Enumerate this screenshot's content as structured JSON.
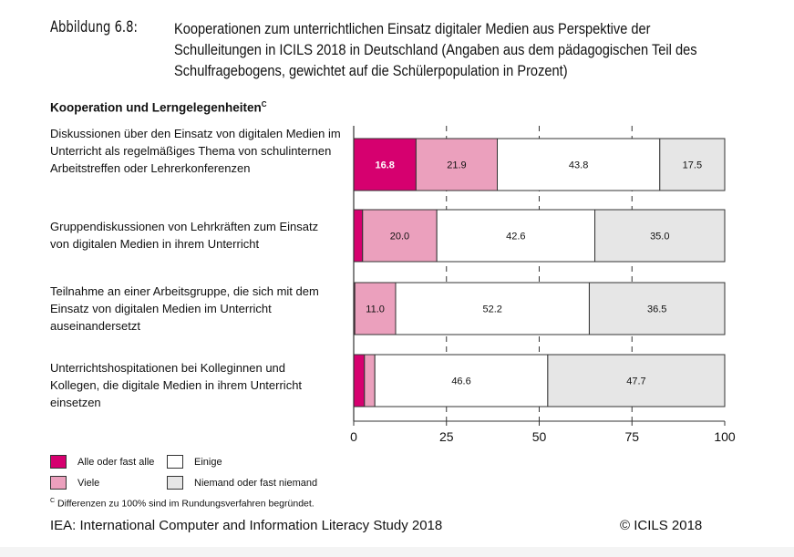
{
  "figure_label": "Abbildung 6.8:",
  "figure_title": "Kooperationen zum unterrichtlichen Einsatz digitaler Medien aus Perspektive der Schulleitungen in ICILS 2018 in Deutschland (Angaben aus dem pädagogischen Teil des Schulfragebogens, gewichtet auf die Schülerpopulation in Prozent)",
  "section_title": "Kooperation und Lerngelegenheiten",
  "section_sup": "C",
  "chart_data": {
    "type": "bar",
    "orientation": "horizontal",
    "stacked": true,
    "categories": [
      "Diskussionen über den Einsatz von digitalen Medien im Unterricht als regelmäßiges Thema von schulinternen Arbeitstreffen oder Lehrerkonferenzen",
      "Gruppendiskussionen von Lehrkräften zum Einsatz von digitalen Medien in ihrem Unterricht",
      "Teilnahme an einer Arbeitsgruppe, die sich mit dem Einsatz von digitalen Medien im Unterricht auseinandersetzt",
      "Unterrichtshospitationen bei Kolleginnen und Kollegen, die digitale Medien in ihrem Unterricht einsetzen"
    ],
    "series": [
      {
        "name": "Alle oder fast alle",
        "color": "#d6006f",
        "values": [
          16.8,
          2.4,
          0.3,
          2.9
        ],
        "labels": [
          "16.8",
          "",
          "",
          ""
        ]
      },
      {
        "name": "Viele",
        "color": "#eba0bd",
        "values": [
          21.9,
          20.0,
          11.0,
          2.8
        ],
        "labels": [
          "21.9",
          "20.0",
          "11.0",
          ""
        ]
      },
      {
        "name": "Einige",
        "color": "#ffffff",
        "values": [
          43.8,
          42.6,
          52.2,
          46.6
        ],
        "labels": [
          "43.8",
          "42.6",
          "52.2",
          "46.6"
        ]
      },
      {
        "name": "Niemand oder fast niemand",
        "color": "#e6e6e6",
        "values": [
          17.5,
          35.0,
          36.5,
          47.7
        ],
        "labels": [
          "17.5",
          "35.0",
          "36.5",
          "47.7"
        ]
      }
    ],
    "xlim": [
      0,
      100
    ],
    "xticks": [
      "0",
      "25",
      "50",
      "75",
      "100"
    ],
    "grid": "dashed vertical at 25, 50, 75",
    "legend": "bottom-left"
  },
  "note_sup": "C",
  "note": "Differenzen zu 100% sind im Rundungsverfahren begründet.",
  "footer_left": "IEA: International Computer and Information Literacy Study 2018",
  "footer_right": "© ICILS 2018"
}
